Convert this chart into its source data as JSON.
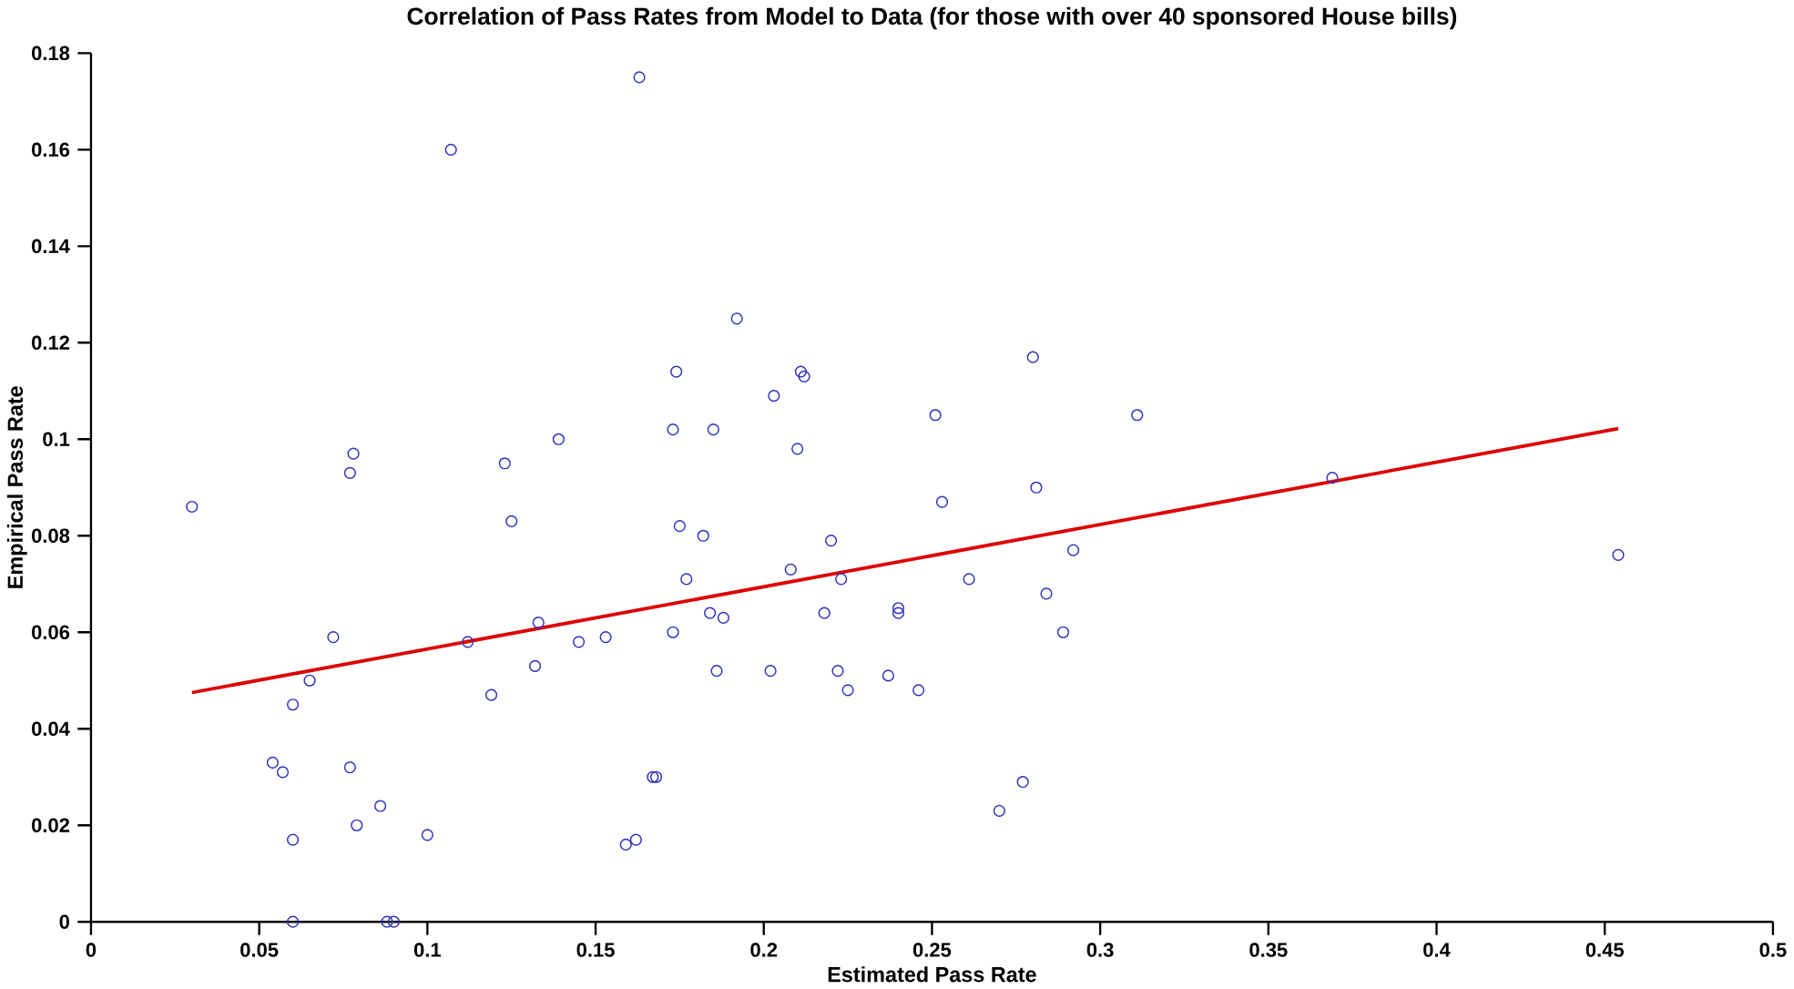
{
  "chart_data": {
    "type": "scatter",
    "title": "Correlation of Pass Rates from Model to Data (for those with over 40 sponsored House bills)",
    "xlabel": "Estimated Pass Rate",
    "ylabel": "Empirical Pass Rate",
    "xlim": [
      0,
      0.5
    ],
    "xticks": [
      0,
      0.05,
      0.1,
      0.15,
      0.2,
      0.25,
      0.3,
      0.35,
      0.4,
      0.45,
      0.5
    ],
    "ylim": [
      0,
      0.18
    ],
    "yticks": [
      0,
      0.02,
      0.04,
      0.06,
      0.08,
      0.1,
      0.12,
      0.14,
      0.16,
      0.18
    ],
    "grid": false,
    "series": [
      {
        "color": "#3333bb",
        "marker": "circle",
        "x": [
          0.03,
          0.054,
          0.057,
          0.06,
          0.06,
          0.06,
          0.065,
          0.072,
          0.077,
          0.078,
          0.077,
          0.079,
          0.086,
          0.088,
          0.09,
          0.1,
          0.107,
          0.112,
          0.119,
          0.123,
          0.125,
          0.132,
          0.133,
          0.139,
          0.145,
          0.153,
          0.159,
          0.162,
          0.163,
          0.167,
          0.168,
          0.173,
          0.173,
          0.174,
          0.175,
          0.177,
          0.182,
          0.184,
          0.185,
          0.186,
          0.188,
          0.192,
          0.202,
          0.203,
          0.208,
          0.21,
          0.211,
          0.212,
          0.218,
          0.22,
          0.222,
          0.223,
          0.225,
          0.237,
          0.24,
          0.24,
          0.246,
          0.251,
          0.253,
          0.261,
          0.27,
          0.277,
          0.28,
          0.281,
          0.284,
          0.289,
          0.292,
          0.311,
          0.369,
          0.454
        ],
        "values": [
          0.086,
          0.033,
          0.031,
          0.045,
          0.017,
          0.0,
          0.05,
          0.059,
          0.093,
          0.097,
          0.032,
          0.02,
          0.024,
          0.0,
          0.0,
          0.018,
          0.16,
          0.058,
          0.047,
          0.095,
          0.083,
          0.053,
          0.062,
          0.1,
          0.058,
          0.059,
          0.016,
          0.017,
          0.175,
          0.03,
          0.03,
          0.06,
          0.102,
          0.114,
          0.082,
          0.071,
          0.08,
          0.064,
          0.102,
          0.052,
          0.063,
          0.125,
          0.052,
          0.109,
          0.073,
          0.098,
          0.114,
          0.113,
          0.064,
          0.079,
          0.052,
          0.071,
          0.048,
          0.051,
          0.064,
          0.065,
          0.048,
          0.105,
          0.087,
          0.071,
          0.023,
          0.029,
          0.117,
          0.09,
          0.068,
          0.06,
          0.077,
          0.105,
          0.092,
          0.076
        ]
      },
      {
        "type": "line",
        "color": "#dd0000",
        "marker": "none",
        "line_style": "solid",
        "x": [
          0.03,
          0.454
        ],
        "values": [
          0.0475,
          0.1022
        ]
      }
    ]
  }
}
